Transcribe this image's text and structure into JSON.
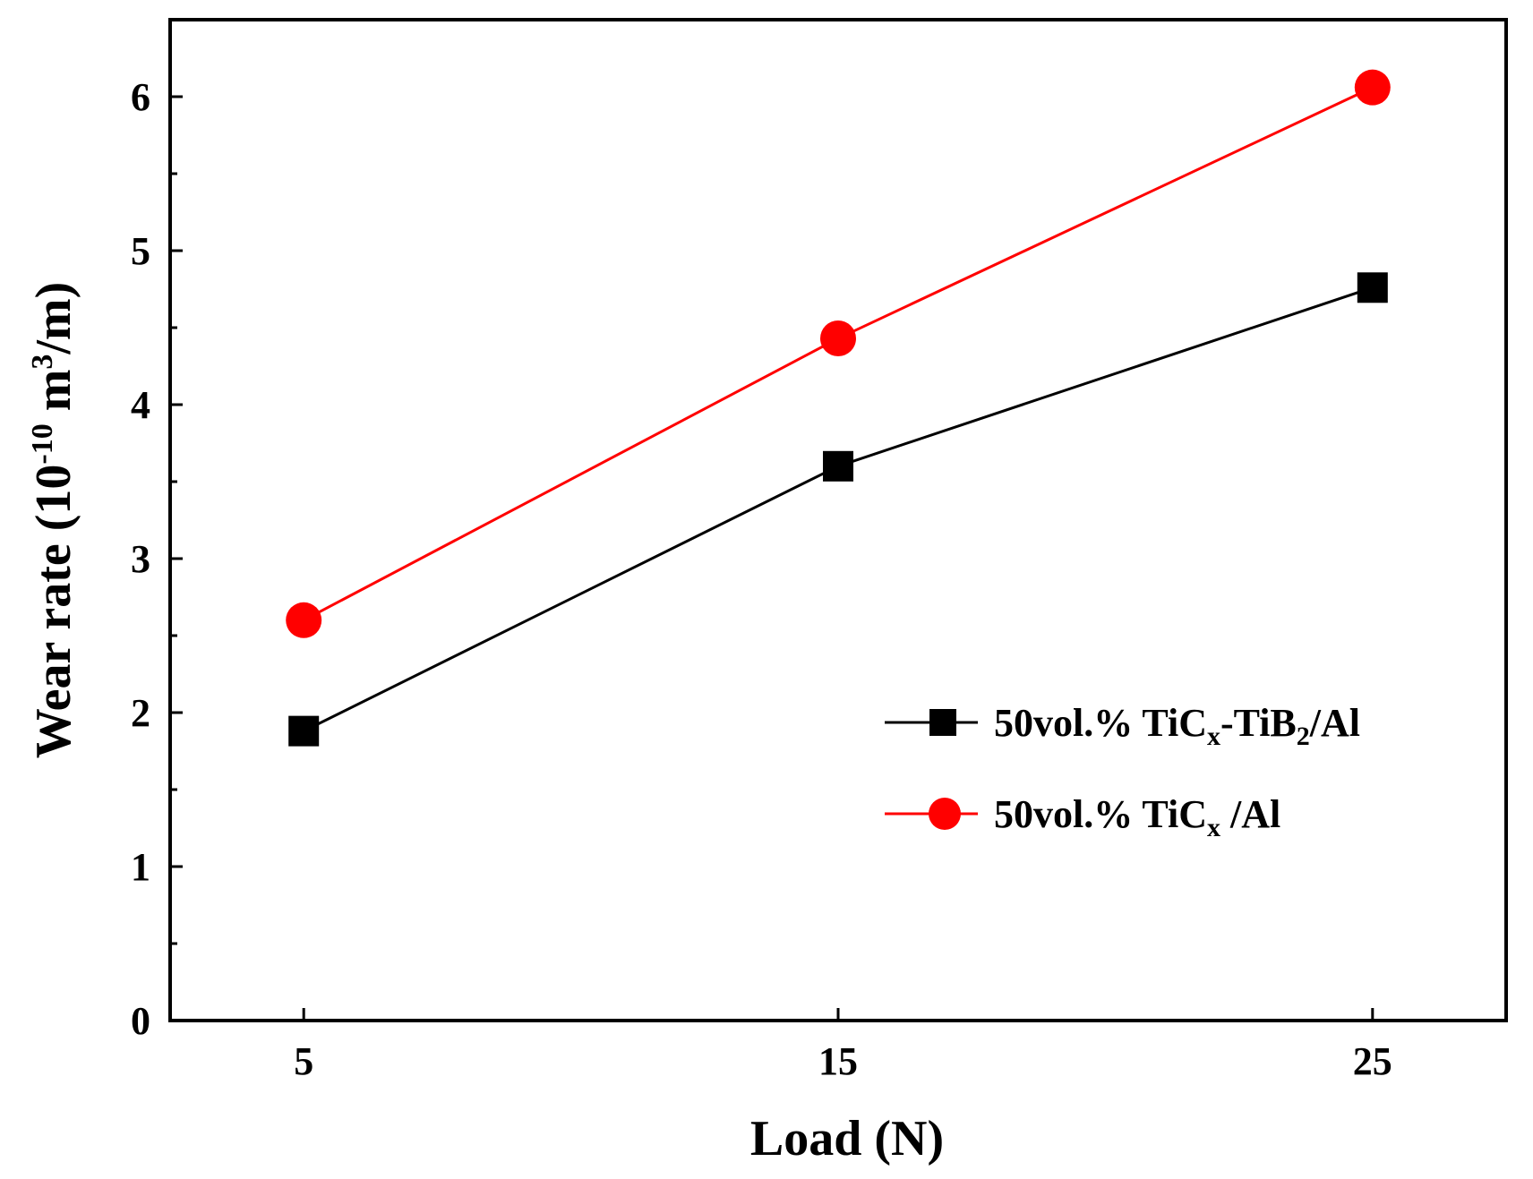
{
  "chart_data": {
    "type": "line",
    "title": "",
    "xlabel": "Load (N)",
    "ylabel": {
      "main": "Wear rate (10",
      "exp": "-10",
      "unit": " m",
      "unit_exp": "3",
      "tail": "/m)"
    },
    "x": [
      5,
      15,
      25
    ],
    "x_tick_labels": [
      "5",
      "15",
      "25"
    ],
    "xlim": [
      2.5,
      27.5
    ],
    "ylim": [
      0,
      6.5
    ],
    "y_ticks": [
      0,
      1,
      2,
      3,
      4,
      5,
      6
    ],
    "y_tick_labels": [
      "0",
      "1",
      "2",
      "3",
      "4",
      "5",
      "6"
    ],
    "grid": false,
    "legend_position": "center-right",
    "series": [
      {
        "name": "50vol.% TiCx-TiB2/Al",
        "legend": {
          "a": "50vol.% TiC",
          "a_sub": "x",
          "b": "-TiB",
          "b_sub": "2",
          "c": "/Al"
        },
        "marker": "square",
        "color": "#000000",
        "values": [
          1.88,
          3.6,
          4.76
        ]
      },
      {
        "name": "50vol.% TiCx /Al",
        "legend": {
          "a": "50vol.% TiC",
          "a_sub": "x",
          "b": " /Al",
          "b_sub": "",
          "c": ""
        },
        "marker": "circle",
        "color": "#ff0000",
        "values": [
          2.6,
          4.43,
          6.06
        ]
      }
    ]
  }
}
